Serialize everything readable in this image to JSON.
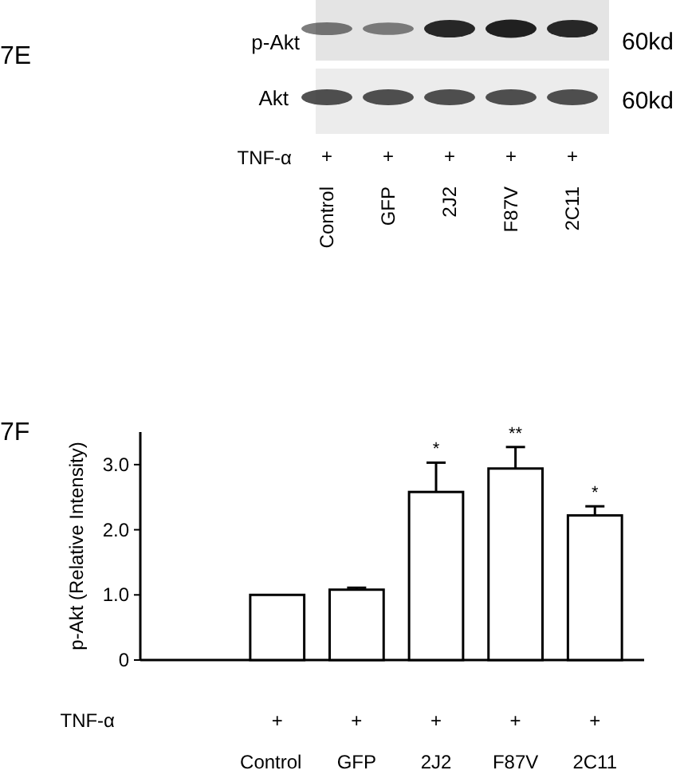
{
  "chart_data": [
    {
      "type": "other",
      "title": "7E",
      "categories": [
        "Control",
        "GFP",
        "2J2",
        "F87V",
        "2C11"
      ],
      "annotations": [
        "p-Akt",
        "Akt",
        "60kd",
        "60kd",
        "TNF-α",
        "+",
        "+",
        "+",
        "+",
        "+"
      ]
    },
    {
      "type": "bar",
      "title": "7F",
      "ylabel": "p-Akt (Relative Intensity)",
      "categories": [
        "Control",
        "GFP",
        "2J2",
        "F87V",
        "2C11"
      ],
      "values": [
        1.0,
        1.08,
        2.58,
        2.94,
        2.22
      ],
      "errors": [
        null,
        0.03,
        0.45,
        0.33,
        0.14
      ],
      "color": "#ffffff",
      "ylim": [
        0,
        3.5
      ],
      "yticks": [
        {
          "value": 0,
          "label": "0"
        },
        {
          "value": 1,
          "label": "1.0"
        },
        {
          "value": 2,
          "label": "2.0"
        },
        {
          "value": 3,
          "label": "3.0"
        }
      ],
      "annotations": [
        {
          "text": "*",
          "x": "2J2",
          "y": 3.03
        },
        {
          "text": "**",
          "x": "F87V",
          "y": 3.27
        },
        {
          "text": "*",
          "x": "2C11",
          "y": 2.36
        },
        "TNF-α",
        "+",
        "+",
        "+",
        "+",
        "+"
      ]
    }
  ]
}
